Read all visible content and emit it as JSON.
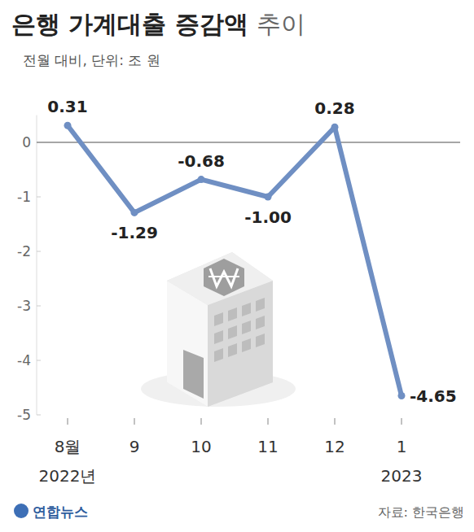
{
  "chart_data": {
    "type": "line",
    "title": "은행 가계대출 증감액 추이",
    "subtitle": "전월 대비, 단위: 조 원",
    "source": "자료: 한국은행",
    "credit": "연합뉴스",
    "categories": [
      "8월\n2022년",
      "9",
      "10",
      "11",
      "12",
      "1\n2023"
    ],
    "values": [
      0.31,
      -1.29,
      -0.68,
      -1.0,
      0.28,
      -4.65
    ],
    "value_labels": [
      "0.31",
      "-1.29",
      "-0.68",
      "-1.00",
      "0.28",
      "-4.65"
    ],
    "color": "#6f8fc3",
    "marker": "circle",
    "ylim": [
      -5,
      0.5
    ],
    "yticks": [
      -5,
      -4,
      -3,
      -2,
      -1,
      0
    ],
    "grid": false,
    "data_labels": true
  }
}
